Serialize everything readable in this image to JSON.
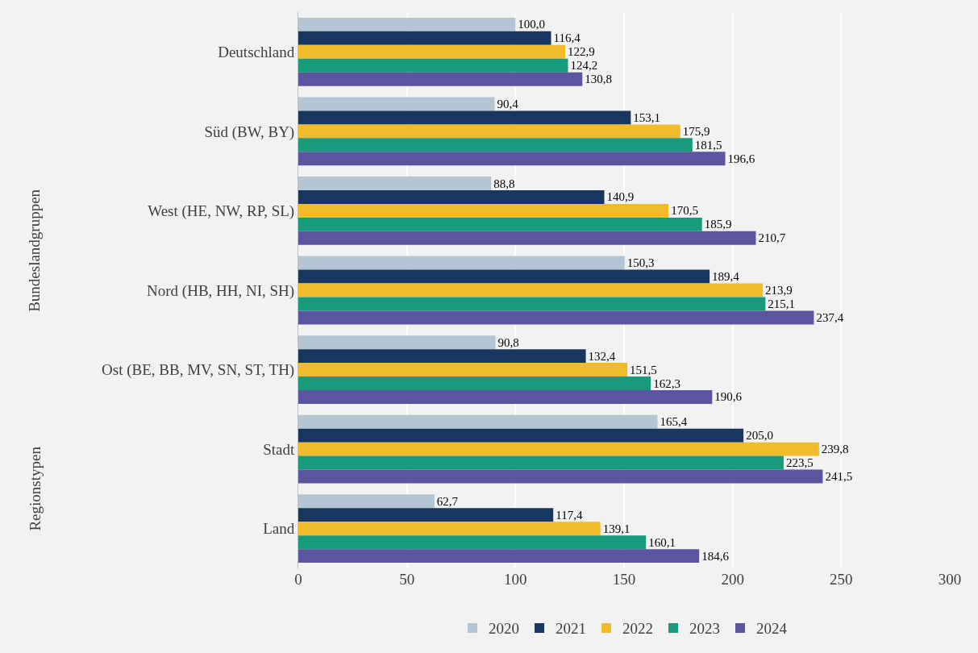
{
  "chart_data": {
    "type": "bar",
    "orientation": "horizontal",
    "categories": [
      "Deutschland",
      "Süd (BW, BY)",
      "West (HE, NW, RP, SL)",
      "Nord (HB, HH, NI, SH)",
      "Ost (BE, BB, MV, SN, ST, TH)",
      "Stadt",
      "Land"
    ],
    "series": [
      {
        "name": "2020",
        "color": "#b4c5d3",
        "values": [
          100.0,
          90.4,
          88.8,
          150.3,
          90.8,
          165.4,
          62.7
        ],
        "value_labels": [
          "100,0",
          "90,4",
          "88,8",
          "150,3",
          "90,8",
          "165,4",
          "62,7"
        ]
      },
      {
        "name": "2021",
        "color": "#17375e",
        "values": [
          116.4,
          153.1,
          140.9,
          189.4,
          132.4,
          205.0,
          117.4
        ],
        "value_labels": [
          "116,4",
          "153,1",
          "140,9",
          "189,4",
          "132,4",
          "205,0",
          "117,4"
        ]
      },
      {
        "name": "2022",
        "color": "#f0bc2c",
        "values": [
          122.9,
          175.9,
          170.5,
          213.9,
          151.5,
          239.8,
          139.1
        ],
        "value_labels": [
          "122,9",
          "175,9",
          "170,5",
          "213,9",
          "151,5",
          "239,8",
          "139,1"
        ]
      },
      {
        "name": "2023",
        "color": "#1a9a7c",
        "values": [
          124.2,
          181.5,
          185.9,
          215.1,
          162.3,
          223.5,
          160.1
        ],
        "value_labels": [
          "124,2",
          "181,5",
          "185,9",
          "215,1",
          "162,3",
          "223,5",
          "160,1"
        ]
      },
      {
        "name": "2024",
        "color": "#5b55a0",
        "values": [
          130.8,
          196.6,
          210.7,
          237.4,
          190.6,
          241.5,
          184.6
        ],
        "value_labels": [
          "130,8",
          "196,6",
          "210,7",
          "237,4",
          "190,6",
          "241,5",
          "184,6"
        ]
      }
    ],
    "xlim": [
      0,
      300
    ],
    "xticks": [
      0,
      50,
      100,
      150,
      200,
      250,
      300
    ],
    "grid": "x",
    "legend": "bottom",
    "annotations": [
      "Bundeslandgruppen",
      "Regionstypen"
    ]
  }
}
